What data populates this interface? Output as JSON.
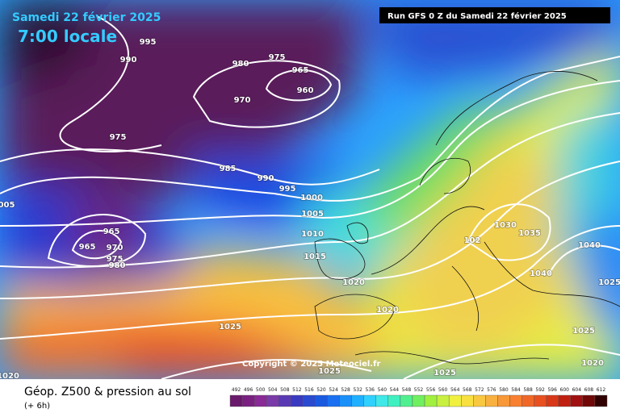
{
  "header": {
    "date": "Samedi 22 février 2025",
    "time": "7:00 locale",
    "run": "Run GFS 0 Z du Samedi 22 février 2025"
  },
  "copyright": "Copyright © 2025 Meteociel.fr",
  "footer": {
    "title": "Géop. Z500 & pression au sol",
    "step": "(+ 6h)"
  },
  "isobar_labels": [
    "995",
    "990",
    "980",
    "975",
    "965",
    "960",
    "970",
    "975",
    "985",
    "990",
    "995",
    "1000",
    "1005",
    "1010",
    "1015",
    "1020",
    "1020",
    "1025",
    "1025",
    "1025",
    "1025",
    "1020",
    "1030",
    "1035",
    "1040",
    "1040",
    "1025",
    "102",
    "965",
    "965",
    "970",
    "975",
    "980",
    "005",
    "1020"
  ],
  "colorbar": {
    "labels": [
      "492",
      "496",
      "500",
      "504",
      "508",
      "512",
      "516",
      "520",
      "524",
      "528",
      "532",
      "536",
      "540",
      "544",
      "548",
      "552",
      "556",
      "560",
      "564",
      "568",
      "572",
      "576",
      "580",
      "584",
      "588",
      "592",
      "596",
      "600",
      "604",
      "608",
      "612"
    ],
    "colors": [
      "#6a1a6a",
      "#7a2080",
      "#8a2a96",
      "#7a3aa8",
      "#5a3ab4",
      "#3a3ac0",
      "#2a4ad0",
      "#1a5ae0",
      "#1a70f0",
      "#1a90f8",
      "#20b0ff",
      "#30d0ff",
      "#40e8e8",
      "#40f0c0",
      "#50f090",
      "#70f060",
      "#a0f040",
      "#c8f040",
      "#f0f040",
      "#f8e040",
      "#f8c840",
      "#f8b040",
      "#f89838",
      "#f88030",
      "#f06828",
      "#e85020",
      "#d83818",
      "#c02010",
      "#a01010",
      "#700808",
      "#300000"
    ]
  }
}
